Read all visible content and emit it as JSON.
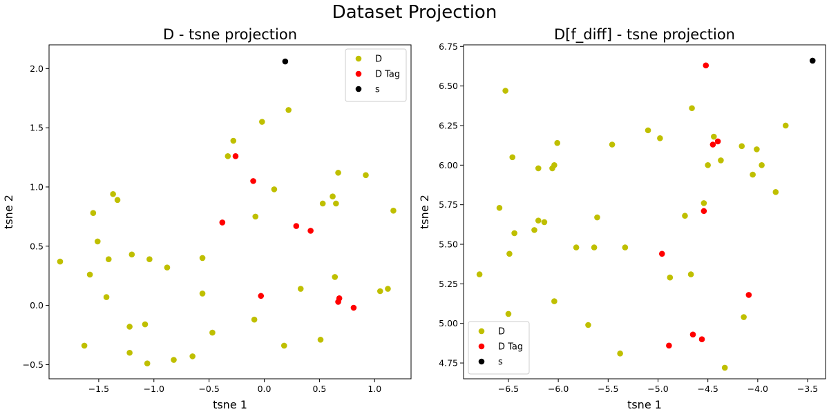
{
  "figure": {
    "title": "Dataset Projection"
  },
  "chart_data": [
    {
      "type": "scatter",
      "title": "D - tsne projection",
      "xlabel": "tsne 1",
      "ylabel": "tsne 2",
      "xlim": [
        -1.95,
        1.33
      ],
      "ylim": [
        -0.62,
        2.2
      ],
      "xticks": [
        -1.5,
        -1.0,
        -0.5,
        0.0,
        0.5,
        1.0
      ],
      "xtick_labels": [
        "−1.5",
        "−1.0",
        "−0.5",
        "0.0",
        "0.5",
        "1.0"
      ],
      "yticks": [
        -0.5,
        0.0,
        0.5,
        1.0,
        1.5,
        2.0
      ],
      "ytick_labels": [
        "−0.5",
        "0.0",
        "0.5",
        "1.0",
        "1.5",
        "2.0"
      ],
      "grid": false,
      "legend": "top-right",
      "series": [
        {
          "name": "D",
          "color": "#bfbf00",
          "points": [
            [
              0.22,
              1.65
            ],
            [
              -0.02,
              1.55
            ],
            [
              -0.28,
              1.39
            ],
            [
              -0.33,
              1.26
            ],
            [
              0.67,
              1.12
            ],
            [
              0.92,
              1.1
            ],
            [
              0.09,
              0.98
            ],
            [
              -1.37,
              0.94
            ],
            [
              -1.33,
              0.89
            ],
            [
              0.62,
              0.92
            ],
            [
              0.53,
              0.86
            ],
            [
              0.65,
              0.86
            ],
            [
              -1.55,
              0.78
            ],
            [
              1.17,
              0.8
            ],
            [
              -0.08,
              0.75
            ],
            [
              -1.51,
              0.54
            ],
            [
              -1.2,
              0.43
            ],
            [
              -1.41,
              0.39
            ],
            [
              -1.04,
              0.39
            ],
            [
              -0.56,
              0.4
            ],
            [
              -0.88,
              0.32
            ],
            [
              -1.85,
              0.37
            ],
            [
              -1.58,
              0.26
            ],
            [
              0.64,
              0.24
            ],
            [
              0.33,
              0.14
            ],
            [
              1.12,
              0.14
            ],
            [
              1.05,
              0.12
            ],
            [
              -0.56,
              0.1
            ],
            [
              -1.43,
              0.07
            ],
            [
              -0.09,
              -0.12
            ],
            [
              -1.22,
              -0.18
            ],
            [
              -1.08,
              -0.16
            ],
            [
              -0.47,
              -0.23
            ],
            [
              0.51,
              -0.29
            ],
            [
              -1.63,
              -0.34
            ],
            [
              0.18,
              -0.34
            ],
            [
              -1.22,
              -0.4
            ],
            [
              -0.65,
              -0.43
            ],
            [
              -0.82,
              -0.46
            ],
            [
              -1.06,
              -0.49
            ]
          ]
        },
        {
          "name": "D Tag",
          "color": "#ff0000",
          "points": [
            [
              -0.26,
              1.26
            ],
            [
              -0.1,
              1.05
            ],
            [
              -0.38,
              0.7
            ],
            [
              0.29,
              0.67
            ],
            [
              0.42,
              0.63
            ],
            [
              -0.03,
              0.08
            ],
            [
              0.68,
              0.06
            ],
            [
              0.67,
              0.03
            ],
            [
              0.81,
              -0.02
            ]
          ]
        },
        {
          "name": "s",
          "color": "#000000",
          "points": [
            [
              0.19,
              2.06
            ]
          ]
        }
      ]
    },
    {
      "type": "scatter",
      "title": "D[f_diff] - tsne projection",
      "xlabel": "tsne 1",
      "ylabel": "tsne 2",
      "xlim": [
        -6.95,
        -3.32
      ],
      "ylim": [
        4.65,
        6.76
      ],
      "xticks": [
        -6.5,
        -6.0,
        -5.5,
        -5.0,
        -4.5,
        -4.0,
        -3.5
      ],
      "xtick_labels": [
        "−6.5",
        "−6.0",
        "−5.5",
        "−5.0",
        "−4.5",
        "−4.0",
        "−3.5"
      ],
      "yticks": [
        4.75,
        5.0,
        5.25,
        5.5,
        5.75,
        6.0,
        6.25,
        6.5,
        6.75
      ],
      "ytick_labels": [
        "4.75",
        "5.00",
        "5.25",
        "5.50",
        "5.75",
        "6.00",
        "6.25",
        "6.50",
        "6.75"
      ],
      "grid": false,
      "legend": "bottom-left",
      "series": [
        {
          "name": "D",
          "color": "#bfbf00",
          "points": [
            [
              -6.53,
              6.47
            ],
            [
              -4.66,
              6.36
            ],
            [
              -3.72,
              6.25
            ],
            [
              -5.1,
              6.22
            ],
            [
              -4.98,
              6.17
            ],
            [
              -4.44,
              6.18
            ],
            [
              -6.01,
              6.14
            ],
            [
              -5.46,
              6.13
            ],
            [
              -4.16,
              6.12
            ],
            [
              -4.01,
              6.1
            ],
            [
              -6.46,
              6.05
            ],
            [
              -4.37,
              6.03
            ],
            [
              -4.5,
              6.0
            ],
            [
              -3.96,
              6.0
            ],
            [
              -6.04,
              6.0
            ],
            [
              -6.2,
              5.98
            ],
            [
              -6.06,
              5.98
            ],
            [
              -4.05,
              5.94
            ],
            [
              -3.82,
              5.83
            ],
            [
              -4.54,
              5.76
            ],
            [
              -6.59,
              5.73
            ],
            [
              -4.73,
              5.68
            ],
            [
              -5.61,
              5.67
            ],
            [
              -6.2,
              5.65
            ],
            [
              -6.14,
              5.64
            ],
            [
              -6.44,
              5.57
            ],
            [
              -6.24,
              5.59
            ],
            [
              -5.82,
              5.48
            ],
            [
              -5.64,
              5.48
            ],
            [
              -5.33,
              5.48
            ],
            [
              -6.49,
              5.44
            ],
            [
              -6.79,
              5.31
            ],
            [
              -4.67,
              5.31
            ],
            [
              -4.88,
              5.29
            ],
            [
              -6.04,
              5.14
            ],
            [
              -4.14,
              5.04
            ],
            [
              -6.5,
              5.06
            ],
            [
              -5.7,
              4.99
            ],
            [
              -5.38,
              4.81
            ],
            [
              -4.33,
              4.72
            ]
          ]
        },
        {
          "name": "D Tag",
          "color": "#ff0000",
          "points": [
            [
              -4.52,
              6.63
            ],
            [
              -4.4,
              6.15
            ],
            [
              -4.45,
              6.13
            ],
            [
              -4.54,
              5.71
            ],
            [
              -4.96,
              5.44
            ],
            [
              -4.09,
              5.18
            ],
            [
              -4.65,
              4.93
            ],
            [
              -4.56,
              4.9
            ],
            [
              -4.89,
              4.86
            ]
          ]
        },
        {
          "name": "s",
          "color": "#000000",
          "points": [
            [
              -3.45,
              6.66
            ]
          ]
        }
      ]
    }
  ]
}
